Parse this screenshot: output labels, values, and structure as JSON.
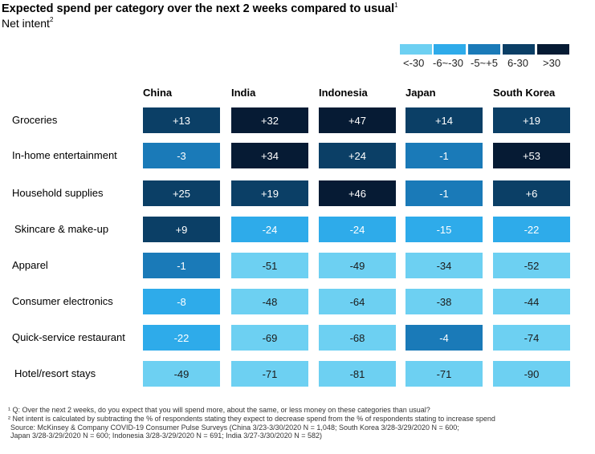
{
  "title": "Expected spend per category over the next 2 weeks compared to usual",
  "title_footnote_mark": "1",
  "subtitle": "Net intent",
  "subtitle_footnote_mark": "2",
  "legend": [
    {
      "label": "<-30",
      "color": "#6dd0f2"
    },
    {
      "label": "-6~-30",
      "color": "#2eabea"
    },
    {
      "label": "-5~+5",
      "color": "#1a7ab8"
    },
    {
      "label": "6-30",
      "color": "#0b3f66"
    },
    {
      "label": ">30",
      "color": "#061b34"
    }
  ],
  "chart_data": {
    "type": "heatmap",
    "title": "Expected spend per category over the next 2 weeks compared to usual",
    "subtitle": "Net intent",
    "columns": [
      "China",
      "India",
      "Indonesia",
      "Japan",
      "South Korea"
    ],
    "rows": [
      "Groceries",
      "In-home entertainment",
      "Household supplies",
      "Skincare & make-up",
      "Apparel",
      "Consumer electronics",
      "Quick-service restaurant",
      "Hotel/resort stays"
    ],
    "values": [
      [
        13,
        32,
        47,
        14,
        19
      ],
      [
        -3,
        34,
        24,
        -1,
        53
      ],
      [
        25,
        19,
        46,
        -1,
        6
      ],
      [
        9,
        -24,
        -24,
        -15,
        -22
      ],
      [
        -1,
        -51,
        -49,
        -34,
        -52
      ],
      [
        -8,
        -48,
        -64,
        -38,
        -44
      ],
      [
        -22,
        -69,
        -68,
        -4,
        -74
      ],
      [
        -49,
        -71,
        -81,
        -71,
        -90
      ]
    ],
    "labels": [
      [
        "+13",
        "+32",
        "+47",
        "+14",
        "+19"
      ],
      [
        "-3",
        "+34",
        "+24",
        "-1",
        "+53"
      ],
      [
        "+25",
        "+19",
        "+46",
        "-1",
        "+6"
      ],
      [
        "+9",
        "-24",
        "-24",
        "-15",
        "-22"
      ],
      [
        "-1",
        "-51",
        "-49",
        "-34",
        "-52"
      ],
      [
        "-8",
        "-48",
        "-64",
        "-38",
        "-44"
      ],
      [
        "-22",
        "-69",
        "-68",
        "-4",
        "-74"
      ],
      [
        "-49",
        "-71",
        "-81",
        "-71",
        "-90"
      ]
    ],
    "bins": [
      {
        "label": "<-30",
        "color": "#6dd0f2"
      },
      {
        "label": "-6~-30",
        "color": "#2eabea"
      },
      {
        "label": "-5~+5",
        "color": "#1a7ab8"
      },
      {
        "label": "6-30",
        "color": "#0b3f66"
      },
      {
        "label": ">30",
        "color": "#061b34"
      }
    ]
  },
  "footnotes": [
    "¹ Q: Over the next 2 weeks, do you expect that you will spend more, about the same, or less money on these categories than usual?",
    "² Net intent is calculated by subtracting the % of respondents stating they expect to decrease spend from the % of respondents stating to increase spend",
    "Source: McKinsey & Company COVID-19 Consumer Pulse Surveys (China 3/23-3/30/2020 N = 1,048; South Korea 3/28-3/29/2020 N = 600;",
    "Japan 3/28-3/29/2020 N = 600; Indonesia 3/28-3/29/2020 N = 691; India 3/27-3/30/2020 N = 582)"
  ]
}
